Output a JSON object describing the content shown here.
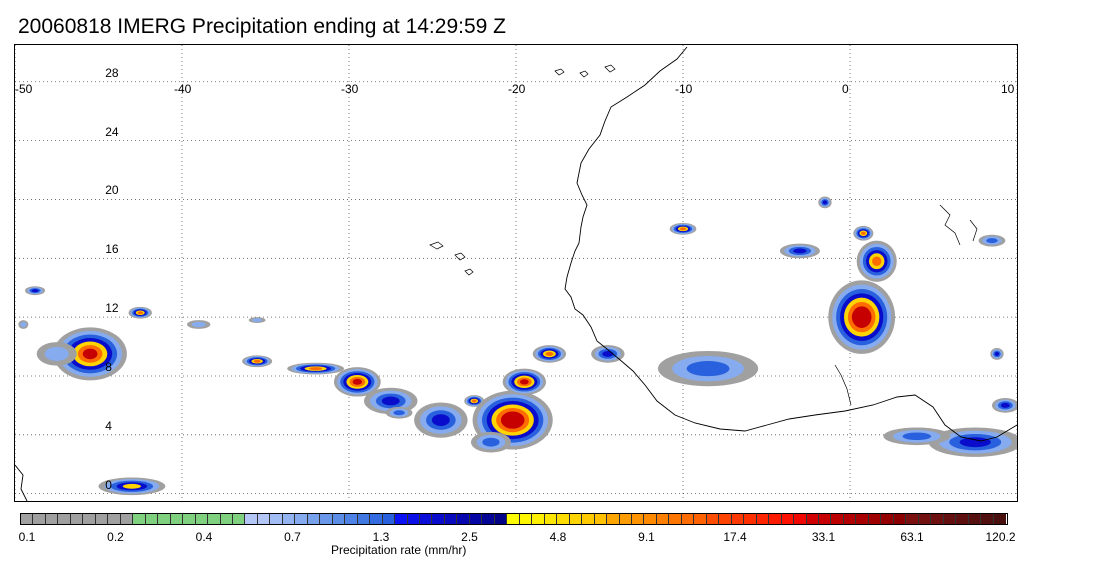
{
  "header": {
    "title": "20060818 IMERG Precipitation ending at 14:29:59 Z"
  },
  "map": {
    "lon_range": [
      -50,
      10
    ],
    "lat_range": [
      -0.5,
      30.5
    ],
    "lon_labels": [
      "-50",
      "-40",
      "-30",
      "-20",
      "-10",
      "0",
      "10"
    ],
    "lat_labels": [
      "28",
      "24",
      "20",
      "16",
      "12",
      "8",
      "4",
      "0"
    ],
    "grid": "dotted",
    "coastline_color": "#000000"
  },
  "precip_cells": [
    {
      "lon": -45.5,
      "lat": 9.5,
      "rx": 2.2,
      "ry": 1.8,
      "peak": 6
    },
    {
      "lon": -47.5,
      "lat": 9.5,
      "rx": 1.2,
      "ry": 0.8,
      "peak": 1
    },
    {
      "lon": -42.5,
      "lat": 12.3,
      "rx": 0.7,
      "ry": 0.4,
      "peak": 5
    },
    {
      "lon": -48.8,
      "lat": 13.8,
      "rx": 0.6,
      "ry": 0.3,
      "peak": 3
    },
    {
      "lon": -43,
      "lat": 0.5,
      "rx": 2.0,
      "ry": 0.6,
      "peak": 4
    },
    {
      "lon": -35.5,
      "lat": 9.0,
      "rx": 0.9,
      "ry": 0.4,
      "peak": 5
    },
    {
      "lon": -32,
      "lat": 8.5,
      "rx": 1.7,
      "ry": 0.4,
      "peak": 5
    },
    {
      "lon": -29.5,
      "lat": 7.6,
      "rx": 1.4,
      "ry": 1.0,
      "peak": 6
    },
    {
      "lon": -27.5,
      "lat": 6.3,
      "rx": 1.6,
      "ry": 0.9,
      "peak": 3
    },
    {
      "lon": -24.5,
      "lat": 5.0,
      "rx": 1.6,
      "ry": 1.2,
      "peak": 3
    },
    {
      "lon": -22.5,
      "lat": 6.3,
      "rx": 0.6,
      "ry": 0.4,
      "peak": 5
    },
    {
      "lon": -20.2,
      "lat": 5.0,
      "rx": 2.4,
      "ry": 2.0,
      "peak": 7
    },
    {
      "lon": -19.5,
      "lat": 7.6,
      "rx": 1.3,
      "ry": 0.9,
      "peak": 6
    },
    {
      "lon": -18.0,
      "lat": 9.5,
      "rx": 1.0,
      "ry": 0.6,
      "peak": 5
    },
    {
      "lon": -14.5,
      "lat": 9.5,
      "rx": 1.0,
      "ry": 0.6,
      "peak": 3
    },
    {
      "lon": -10.0,
      "lat": 18.0,
      "rx": 0.8,
      "ry": 0.4,
      "peak": 5
    },
    {
      "lon": -8.5,
      "lat": 8.5,
      "rx": 3.0,
      "ry": 1.2,
      "peak": 2
    },
    {
      "lon": -3.0,
      "lat": 16.5,
      "rx": 1.2,
      "ry": 0.5,
      "peak": 3
    },
    {
      "lon": 0.7,
      "lat": 12.0,
      "rx": 2.0,
      "ry": 2.5,
      "peak": 7
    },
    {
      "lon": 1.6,
      "lat": 15.8,
      "rx": 1.2,
      "ry": 1.4,
      "peak": 5
    },
    {
      "lon": 0.8,
      "lat": 17.7,
      "rx": 0.6,
      "ry": 0.5,
      "peak": 5
    },
    {
      "lon": -1.5,
      "lat": 19.8,
      "rx": 0.4,
      "ry": 0.4,
      "peak": 3
    },
    {
      "lon": 8.8,
      "lat": 9.5,
      "rx": 0.4,
      "ry": 0.4,
      "peak": 3
    },
    {
      "lon": 7.5,
      "lat": 3.5,
      "rx": 2.8,
      "ry": 1.0,
      "peak": 3
    },
    {
      "lon": 4.0,
      "lat": 3.9,
      "rx": 2.0,
      "ry": 0.6,
      "peak": 2
    },
    {
      "lon": 9.3,
      "lat": 6.0,
      "rx": 0.8,
      "ry": 0.5,
      "peak": 3
    },
    {
      "lon": 8.5,
      "lat": 17.2,
      "rx": 0.8,
      "ry": 0.4,
      "peak": 2
    },
    {
      "lon": -27.0,
      "lat": 5.5,
      "rx": 0.8,
      "ry": 0.4,
      "peak": 2
    },
    {
      "lon": -21.5,
      "lat": 3.5,
      "rx": 1.2,
      "ry": 0.7,
      "peak": 2
    },
    {
      "lon": -49.5,
      "lat": 11.5,
      "rx": 0.3,
      "ry": 0.3,
      "peak": 1
    },
    {
      "lon": -39.0,
      "lat": 11.5,
      "rx": 0.7,
      "ry": 0.3,
      "peak": 1
    },
    {
      "lon": -35.5,
      "lat": 11.8,
      "rx": 0.5,
      "ry": 0.2,
      "peak": 1
    }
  ],
  "colorbar": {
    "label": "Precipitation rate (mm/hr)",
    "colors": [
      "#a0a0a0",
      "#a0a0a0",
      "#a0a0a0",
      "#a0a0a0",
      "#a0a0a0",
      "#a0a0a0",
      "#a0a0a0",
      "#a0a0a0",
      "#a0a0a0",
      "#7fd07f",
      "#7fd07f",
      "#7fd07f",
      "#7fd07f",
      "#7fd07f",
      "#7fd07f",
      "#7fd07f",
      "#7fd07f",
      "#7fd07f",
      "#b3c6f5",
      "#b3c6f5",
      "#a2bdf3",
      "#94b4f1",
      "#86abee",
      "#78a1ec",
      "#6a97ea",
      "#5c8de7",
      "#4e82e4",
      "#4177e0",
      "#346be0",
      "#2860de",
      "#0b12f3",
      "#0b10e6",
      "#0a0ed8",
      "#0a0ccb",
      "#0909be",
      "#0707b0",
      "#0505a3",
      "#040495",
      "#030388",
      "#ffff00",
      "#fff700",
      "#ffef00",
      "#ffe600",
      "#ffdd00",
      "#ffd400",
      "#ffcb00",
      "#ffc100",
      "#ffa500",
      "#ff9c00",
      "#ff9300",
      "#ff8a00",
      "#ff8000",
      "#ff7600",
      "#ff6c00",
      "#ff6200",
      "#ff4d00",
      "#ff4300",
      "#ff3900",
      "#ff2f00",
      "#ff2500",
      "#ff1b00",
      "#ff1100",
      "#f00800",
      "#d00000",
      "#c60000",
      "#bc0000",
      "#b20000",
      "#a80000",
      "#9e0000",
      "#940000",
      "#8a0000",
      "#7a1010",
      "#731010",
      "#6c1010",
      "#651010",
      "#5e1010",
      "#571010",
      "#501010",
      "#4a1010"
    ],
    "ticks": [
      "0.1",
      "0.2",
      "0.4",
      "0.7",
      "1.3",
      "2.5",
      "4.8",
      "9.1",
      "17.4",
      "33.1",
      "63.1",
      "120.2"
    ]
  }
}
